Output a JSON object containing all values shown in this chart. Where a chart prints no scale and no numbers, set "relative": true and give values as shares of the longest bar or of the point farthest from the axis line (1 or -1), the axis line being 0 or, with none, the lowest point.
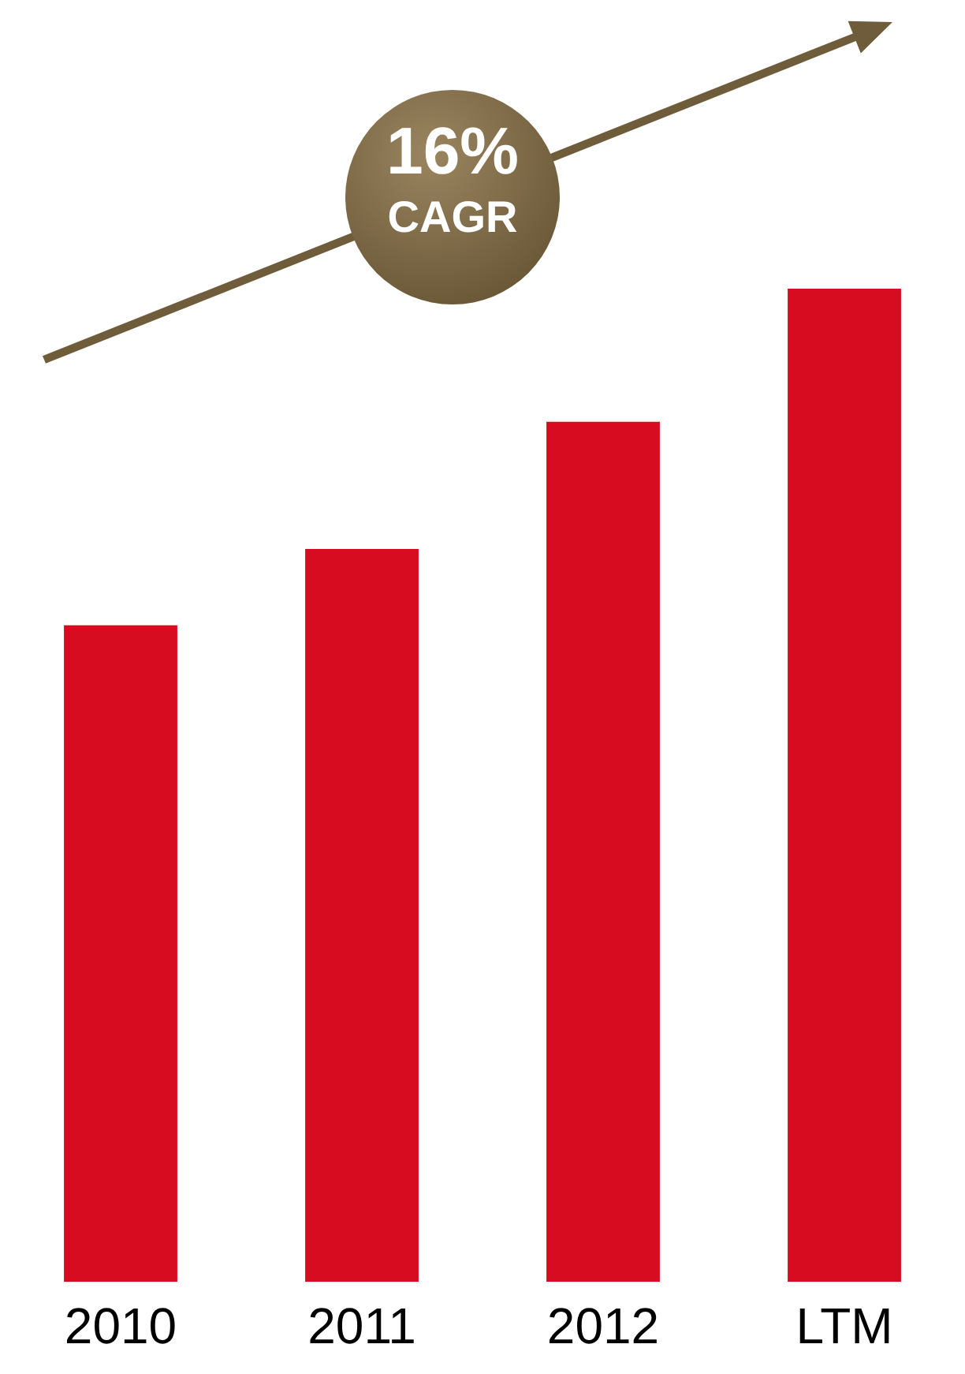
{
  "chart_data": {
    "type": "bar",
    "relative": true,
    "categories": [
      "2010",
      "2011",
      "2012",
      "LTM"
    ],
    "values": [
      0.661,
      0.738,
      0.866,
      1
    ],
    "color": "#d80c20",
    "annotations": [
      "16%",
      "CAGR"
    ]
  }
}
